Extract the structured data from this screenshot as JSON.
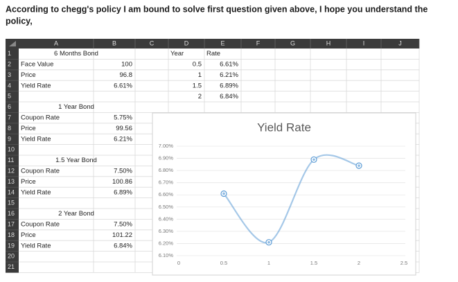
{
  "header": {
    "lines": [
      "According to chegg's policy I am bound to solve first question given above, I hope you understand the",
      "policy,"
    ]
  },
  "sheet": {
    "columns": [
      "A",
      "B",
      "C",
      "D",
      "E",
      "F",
      "G",
      "H",
      "I",
      "J"
    ],
    "rows": [
      1,
      2,
      3,
      4,
      5,
      6,
      7,
      8,
      9,
      10,
      11,
      12,
      13,
      14,
      15,
      16,
      17,
      18,
      19,
      20,
      21
    ],
    "cells": {
      "A1": "6 Months Bond",
      "D1": "Year",
      "E1": "Rate",
      "A2": "Face Value",
      "B2": "100",
      "D2": "0.5",
      "E2": "6.61%",
      "A3": "Price",
      "B3": "96.8",
      "D3": "1",
      "E3": "6.21%",
      "A4": "Yield Rate",
      "B4": "6.61%",
      "D4": "1.5",
      "E4": "6.89%",
      "D5": "2",
      "E5": "6.84%",
      "A6": "1 Year Bond",
      "A7": "Coupon Rate",
      "B7": "5.75%",
      "A8": "Price",
      "B8": "99.56",
      "A9": "Yield Rate",
      "B9": "6.21%",
      "A11": "1.5 Year Bond",
      "A12": "Coupon Rate",
      "B12": "7.50%",
      "A13": "Price",
      "B13": "100.86",
      "A14": "Yield Rate",
      "B14": "6.89%",
      "A16": "2 Year Bond",
      "A17": "Coupon Rate",
      "B17": "7.50%",
      "A18": "Price",
      "B18": "101.22",
      "A19": "Yield Rate",
      "B19": "6.84%"
    }
  },
  "chart_data": {
    "type": "line",
    "title": "Yield Rate",
    "x": [
      0.5,
      1,
      1.5,
      2
    ],
    "series": [
      {
        "name": "Rate",
        "color": "#5b9bd5",
        "values": [
          6.61,
          6.21,
          6.89,
          6.84
        ]
      }
    ],
    "xlim": [
      0,
      2.5
    ],
    "xticks": [
      0,
      0.5,
      1,
      1.5,
      2,
      2.5
    ],
    "ylim": [
      6.1,
      7.0
    ],
    "yticks": [
      {
        "value": 6.1,
        "label": "6.10%"
      },
      {
        "value": 6.2,
        "label": "6.20%"
      },
      {
        "value": 6.3,
        "label": "6.30%"
      },
      {
        "value": 6.4,
        "label": "6.40%"
      },
      {
        "value": 6.5,
        "label": "6.50%"
      },
      {
        "value": 6.6,
        "label": "6.60%"
      },
      {
        "value": 6.7,
        "label": "6.70%"
      },
      {
        "value": 6.8,
        "label": "6.80%"
      },
      {
        "value": 6.9,
        "label": "6.90%"
      },
      {
        "value": 7.0,
        "label": "7.00%"
      }
    ],
    "grid": true
  }
}
